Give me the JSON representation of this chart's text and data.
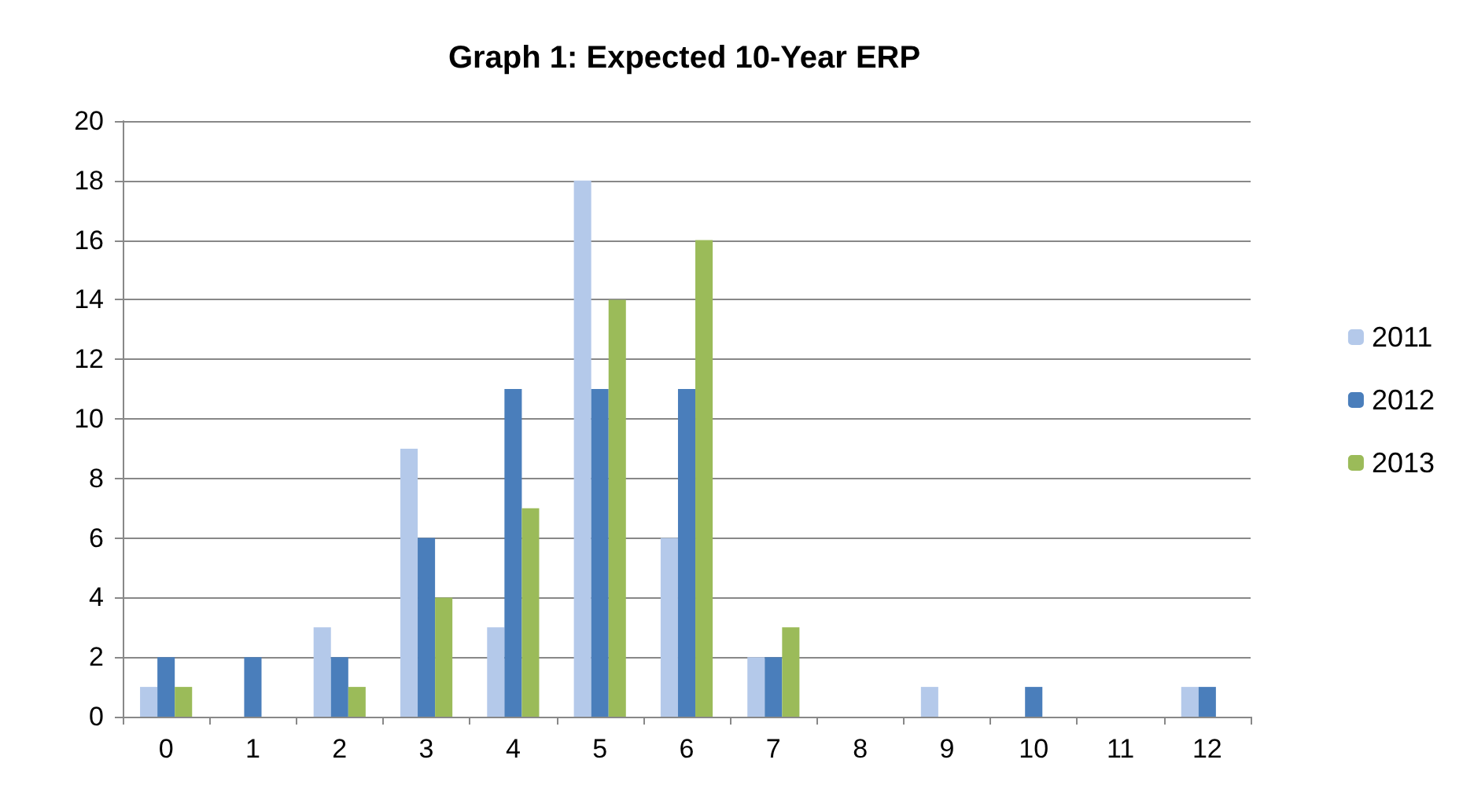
{
  "chart_data": {
    "type": "bar",
    "title": "Graph 1: Expected 10-Year ERP",
    "categories": [
      "0",
      "1",
      "2",
      "3",
      "4",
      "5",
      "6",
      "7",
      "8",
      "9",
      "10",
      "11",
      "12"
    ],
    "series": [
      {
        "name": "2011",
        "color": "#b4c9ea",
        "values": [
          1,
          0,
          3,
          9,
          3,
          18,
          6,
          2,
          0,
          1,
          0,
          0,
          1
        ]
      },
      {
        "name": "2012",
        "color": "#4a7ebb",
        "values": [
          2,
          2,
          2,
          6,
          11,
          11,
          11,
          2,
          0,
          0,
          1,
          0,
          1
        ]
      },
      {
        "name": "2013",
        "color": "#9bbb59",
        "values": [
          1,
          0,
          1,
          4,
          7,
          14,
          16,
          3,
          0,
          0,
          0,
          0,
          0
        ]
      }
    ],
    "ylim": [
      0,
      20
    ],
    "yticks": [
      0,
      2,
      4,
      6,
      8,
      10,
      12,
      14,
      16,
      18,
      20
    ],
    "grid": "y",
    "legend": "right"
  }
}
